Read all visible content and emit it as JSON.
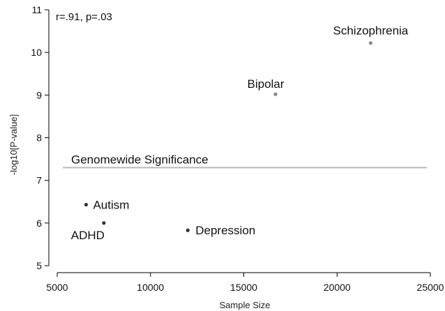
{
  "chart_data": {
    "type": "scatter",
    "title": "",
    "xlabel": "Sample Size",
    "ylabel": "-log10[P-value]",
    "xlim": [
      5000,
      25000
    ],
    "ylim": [
      5,
      11
    ],
    "xticks": [
      5000,
      10000,
      15000,
      20000,
      25000
    ],
    "yticks": [
      5,
      6,
      7,
      8,
      9,
      10,
      11
    ],
    "grid": false,
    "annotation": "r=.91, p=.03",
    "reference_line": {
      "label": "Genomewide Significance",
      "y": 7.3
    },
    "points": [
      {
        "label": "Schizophrenia",
        "x": 21800,
        "y": 10.22,
        "color": "#888888"
      },
      {
        "label": "Bipolar",
        "x": 16700,
        "y": 9.02,
        "color": "#888888"
      },
      {
        "label": "Autism",
        "x": 6550,
        "y": 6.43,
        "color": "#333333"
      },
      {
        "label": "ADHD",
        "x": 7500,
        "y": 6.0,
        "color": "#333333"
      },
      {
        "label": "Depression",
        "x": 12000,
        "y": 5.83,
        "color": "#333333"
      }
    ],
    "colors": {
      "axis": "#000000",
      "reference_line": "#bbbbbb"
    }
  }
}
